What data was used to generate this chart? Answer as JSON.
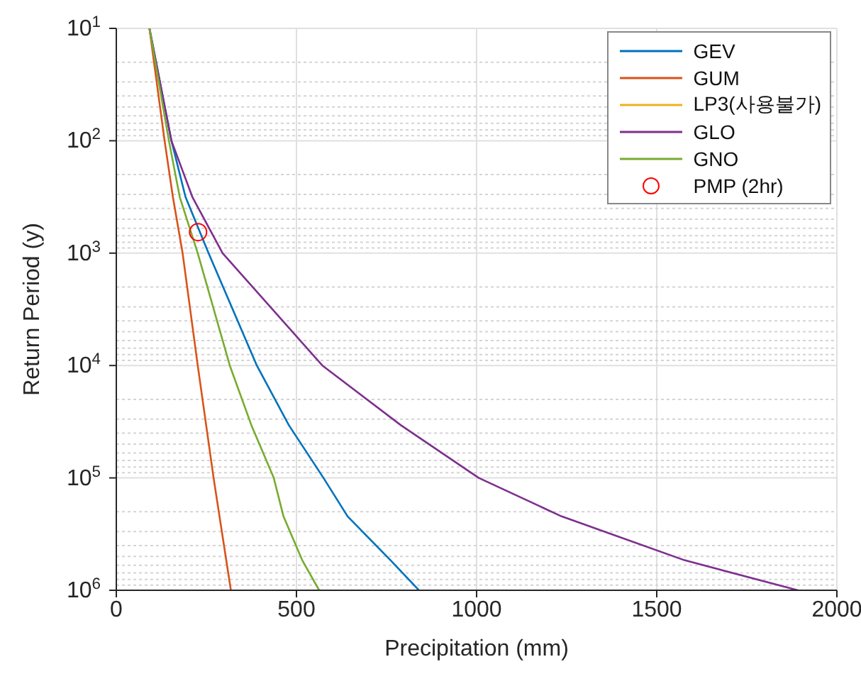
{
  "chart_data": {
    "type": "line",
    "xlabel": "Precipitation (mm)",
    "ylabel": "Return Period (y)",
    "xlim": [
      0,
      2000
    ],
    "xticks": [
      0,
      500,
      1000,
      1500,
      2000
    ],
    "ylim": [
      1000000,
      10
    ],
    "yticks": [
      {
        "value": 10,
        "label": "10$^{1}$"
      },
      {
        "value": 100,
        "label": "10$^{2}$"
      },
      {
        "value": 1000,
        "label": "10$^{3}$"
      },
      {
        "value": 10000,
        "label": "10$^{4}$"
      },
      {
        "value": 100000,
        "label": "10$^{5}$"
      },
      {
        "value": 1000000,
        "label": "10$^{6}$"
      }
    ],
    "log": "y",
    "grid": true,
    "legend": "top right",
    "marker": "none",
    "line_style": "solid",
    "series": [
      {
        "name": "GEV",
        "color": "#0072bd",
        "x": [
          92,
          153,
          192,
          256,
          390,
          479,
          575,
          642,
          761,
          840
        ],
        "values": [
          10,
          100,
          316,
          1000,
          10000,
          34000,
          100000,
          220000,
          540000,
          1000000
        ]
      },
      {
        "name": "GUM",
        "color": "#d95319",
        "x": [
          92,
          134,
          157,
          184,
          226,
          270,
          318
        ],
        "values": [
          10,
          100,
          316,
          1000,
          10000,
          100000,
          1000000
        ]
      },
      {
        "name": "LP3(사용불가)",
        "color": "#edb120"
      },
      {
        "name": "GLO",
        "color": "#7e2f8e",
        "x": [
          92,
          153,
          211,
          295,
          572,
          790,
          1006,
          1236,
          1577,
          1892
        ],
        "values": [
          10,
          100,
          316,
          1000,
          10000,
          34000,
          100000,
          220000,
          540000,
          1000000
        ]
      },
      {
        "name": "GNO",
        "color": "#77ac30",
        "x": [
          92,
          146,
          176,
          226,
          315,
          375,
          437,
          464,
          516,
          563
        ],
        "values": [
          10,
          100,
          316,
          1000,
          10000,
          34000,
          100000,
          220000,
          540000,
          1000000
        ]
      },
      {
        "name": "PMP (2hr)",
        "type": "scatter",
        "marker": "circle",
        "color": "#ff0000",
        "x": [
          227
        ],
        "values": [
          650
        ]
      }
    ]
  }
}
